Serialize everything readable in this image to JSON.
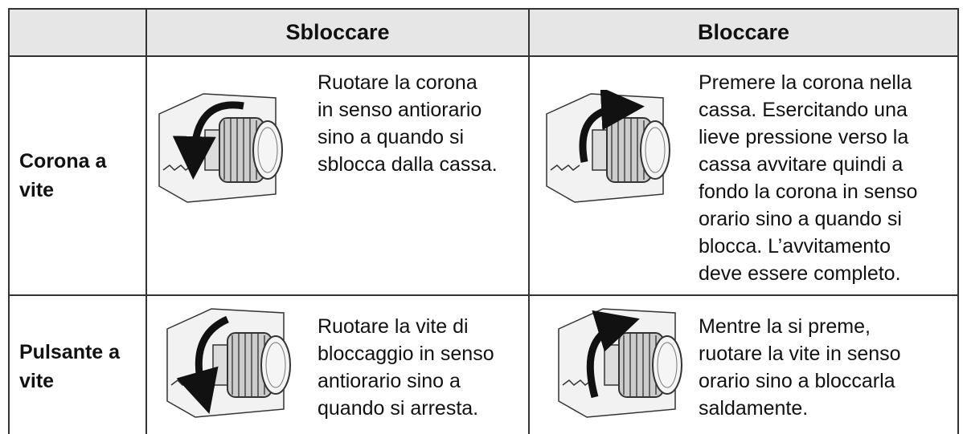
{
  "table": {
    "header": [
      "Sbloccare",
      "Bloccare"
    ],
    "rows": [
      {
        "label": [
          "Corona a",
          "vite"
        ],
        "unlock": [
          "Ruotare la corona",
          "in senso antiorario",
          "sino a quando si",
          "sblocca dalla cassa."
        ],
        "lock": [
          "Premere la corona nella",
          "cassa. Esercitando una",
          "lieve pressione verso la",
          "cassa avvitare quindi a",
          "fondo la corona in senso",
          "orario sino a quando si",
          "blocca. L’avvitamento",
          "deve essere completo."
        ]
      },
      {
        "label": [
          "Pulsante a",
          "vite"
        ],
        "unlock": [
          "Ruotare la vite di",
          "bloccaggio in senso",
          "antiorario sino a",
          "quando si arresta."
        ],
        "lock": [
          "Mentre la si preme,",
          "ruotare la vite in senso",
          "orario sino a bloccarla",
          "saldamente."
        ]
      }
    ]
  }
}
